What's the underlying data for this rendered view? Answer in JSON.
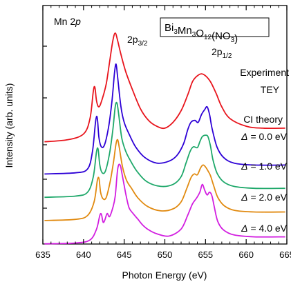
{
  "chart_data": {
    "type": "line",
    "xlabel": "Photon Energy (eV)",
    "ylabel": "Intensity (arb. units)",
    "xlim": [
      635,
      665
    ],
    "x_ticks": [
      635,
      640,
      645,
      650,
      655,
      660,
      665
    ],
    "grid": false,
    "y_ticks_labeled": false,
    "annotations": {
      "edge": "Mn 2p",
      "compound": "Bi3Mn3O12(NO3)",
      "peak_l3": "2p3/2",
      "peak_l2": "2p1/2"
    },
    "series": [
      {
        "name": "Experiment TEY",
        "label_lines": [
          "Experiment",
          "TEY"
        ],
        "color": "#e8141c",
        "offset": 0.6,
        "x": [
          635.2,
          638,
          640,
          640.8,
          641.2,
          641.4,
          641.6,
          641.9,
          642.3,
          642.8,
          643.2,
          643.6,
          643.9,
          644.2,
          644.6,
          645.2,
          646,
          647,
          648,
          649,
          650,
          651,
          652,
          652.8,
          653.4,
          654,
          654.5,
          655,
          655.6,
          656.3,
          657,
          658,
          660,
          662,
          664.8
        ],
        "y": [
          0.25,
          0.3,
          0.45,
          0.85,
          1.55,
          1.65,
          1.3,
          1.15,
          1.35,
          1.75,
          2.3,
          2.85,
          3.05,
          2.85,
          2.5,
          2.05,
          1.6,
          1.1,
          0.8,
          0.65,
          0.6,
          0.75,
          1.05,
          1.45,
          1.8,
          1.95,
          2.0,
          1.95,
          1.8,
          1.5,
          1.15,
          0.85,
          0.65,
          0.6,
          0.6
        ]
      },
      {
        "name": "CI theory Δ = 0.0 eV",
        "label_lines": [
          "CI theory",
          "Δ = 0.0 eV"
        ],
        "color": "#2d00d6",
        "offset": 0.0,
        "x": [
          635.2,
          639,
          640.5,
          641.1,
          641.5,
          641.7,
          641.9,
          642.2,
          642.6,
          643.1,
          643.5,
          643.8,
          644,
          644.2,
          644.6,
          645,
          645.6,
          646.4,
          647.5,
          649,
          650.5,
          651.5,
          652.3,
          652.8,
          653.2,
          653.7,
          654.1,
          654.5,
          654.9,
          655.2,
          655.5,
          655.8,
          656.4,
          657.2,
          658.5,
          661,
          664.8
        ],
        "y": [
          0.02,
          0.05,
          0.15,
          0.6,
          1.4,
          1.45,
          0.95,
          0.72,
          0.78,
          1.25,
          1.9,
          2.6,
          2.85,
          2.5,
          1.75,
          1.35,
          1.05,
          0.72,
          0.45,
          0.3,
          0.35,
          0.5,
          0.8,
          1.15,
          1.35,
          1.4,
          1.35,
          1.55,
          1.68,
          1.75,
          1.55,
          1.2,
          0.72,
          0.45,
          0.3,
          0.25,
          0.25
        ]
      },
      {
        "name": "Δ = 1.0 eV",
        "label_lines": [
          "Δ = 1.0 eV"
        ],
        "color": "#1ea86a",
        "offset": -0.6,
        "x": [
          635.2,
          639,
          640.5,
          641.2,
          641.6,
          641.8,
          642,
          642.3,
          642.7,
          643.2,
          643.6,
          643.9,
          644.1,
          644.3,
          644.7,
          645.2,
          645.8,
          646.6,
          647.8,
          649.5,
          651,
          652,
          652.6,
          653.1,
          653.5,
          654,
          654.3,
          654.6,
          655,
          655.3,
          655.6,
          655.9,
          656.4,
          657.2,
          658.5,
          661,
          664.8
        ],
        "y": [
          0.02,
          0.05,
          0.15,
          0.55,
          1.2,
          1.25,
          0.85,
          0.65,
          0.7,
          1.15,
          1.75,
          2.35,
          2.45,
          2.2,
          1.55,
          1.2,
          0.95,
          0.68,
          0.42,
          0.3,
          0.35,
          0.55,
          0.9,
          1.2,
          1.32,
          1.3,
          1.45,
          1.58,
          1.62,
          1.58,
          1.35,
          1.0,
          0.65,
          0.42,
          0.3,
          0.25,
          0.25
        ]
      },
      {
        "name": "Δ = 2.0 eV",
        "label_lines": [
          "Δ = 2.0 eV"
        ],
        "color": "#e18a10",
        "offset": -1.2,
        "x": [
          635.2,
          639,
          640.5,
          641.3,
          641.7,
          641.9,
          642.1,
          642.4,
          642.8,
          643.3,
          643.7,
          644,
          644.2,
          644.4,
          644.8,
          645.3,
          645.9,
          646.7,
          647.9,
          649.5,
          651,
          652,
          652.7,
          653.2,
          653.6,
          654,
          654.4,
          654.7,
          655,
          655.3,
          655.6,
          656,
          656.5,
          657.3,
          658.6,
          661,
          664.8
        ],
        "y": [
          0.02,
          0.05,
          0.15,
          0.5,
          1.05,
          1.1,
          0.75,
          0.58,
          0.62,
          1.05,
          1.55,
          2.0,
          2.1,
          1.9,
          1.4,
          1.05,
          0.85,
          0.6,
          0.38,
          0.27,
          0.32,
          0.5,
          0.85,
          1.12,
          1.22,
          1.2,
          1.38,
          1.45,
          1.4,
          1.3,
          1.18,
          0.92,
          0.62,
          0.4,
          0.28,
          0.24,
          0.24
        ]
      },
      {
        "name": "Δ = 4.0 eV",
        "label_lines": [
          "Δ = 4.0 eV"
        ],
        "color": "#d21ee0",
        "offset": -1.8,
        "x": [
          635.2,
          639,
          640.8,
          641.6,
          642,
          642.2,
          642.4,
          642.6,
          642.9,
          643.2,
          643.6,
          643.9,
          644.2,
          644.5,
          644.8,
          645.2,
          645.6,
          646.1,
          646.7,
          647.3,
          648,
          649,
          650.5,
          652,
          652.8,
          653.4,
          653.9,
          654.3,
          654.6,
          654.9,
          655.2,
          655.5,
          655.8,
          656.1,
          656.5,
          657.2,
          658.5,
          661,
          664.8
        ],
        "y": [
          0.02,
          0.04,
          0.12,
          0.4,
          0.75,
          0.78,
          0.58,
          0.62,
          0.8,
          0.72,
          0.95,
          1.25,
          1.95,
          2.05,
          1.75,
          1.3,
          0.95,
          0.8,
          0.65,
          0.5,
          0.38,
          0.28,
          0.22,
          0.4,
          0.75,
          1.05,
          1.2,
          1.35,
          1.55,
          1.4,
          1.28,
          1.35,
          1.25,
          0.95,
          0.6,
          0.38,
          0.25,
          0.2,
          0.2
        ]
      }
    ]
  }
}
